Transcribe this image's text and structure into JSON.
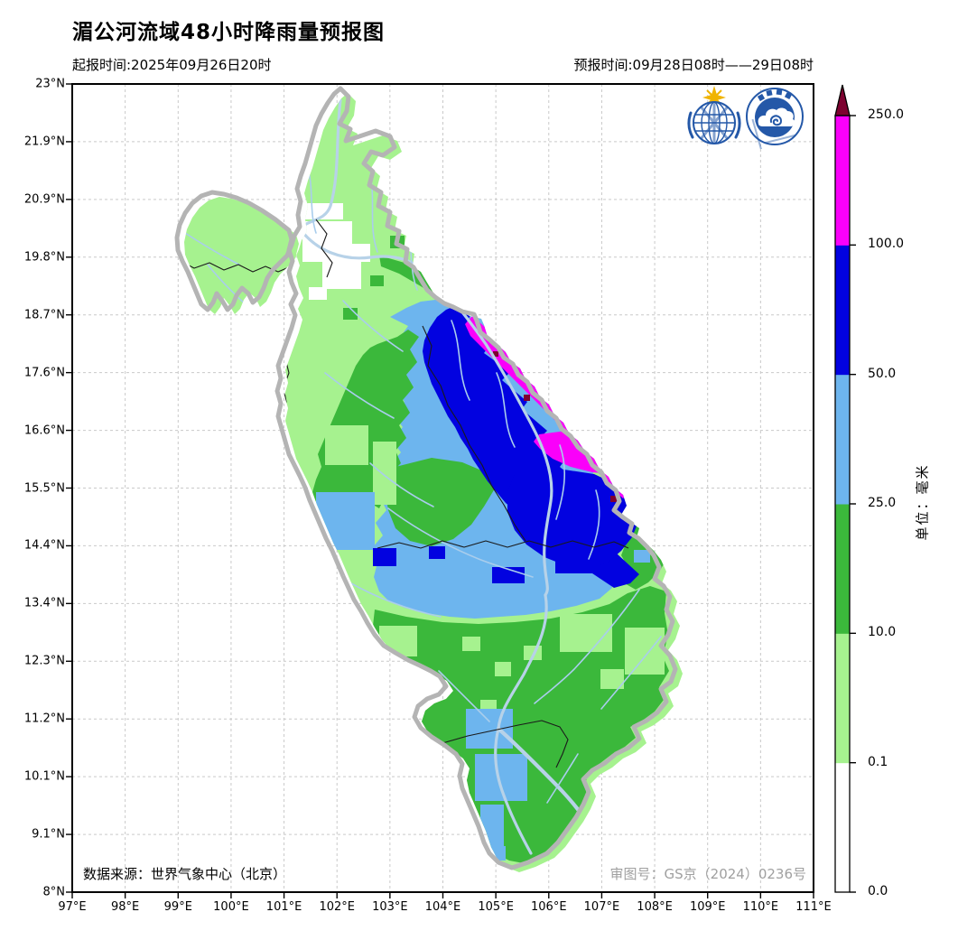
{
  "header": {
    "title": "湄公河流域48小时降雨量预报图",
    "init_time": "起报时间:2025年09月26日20时",
    "forecast_time": "预报时间:09月28日08时——29日08时"
  },
  "map": {
    "x_ticks": [
      "97°E",
      "98°E",
      "99°E",
      "100°E",
      "101°E",
      "102°E",
      "103°E",
      "104°E",
      "105°E",
      "106°E",
      "107°E",
      "108°E",
      "109°E",
      "110°E",
      "111°E"
    ],
    "y_ticks": [
      "23°N",
      "21.9°N",
      "20.9°N",
      "19.8°N",
      "18.7°N",
      "17.6°N",
      "16.6°N",
      "15.5°N",
      "14.4°N",
      "13.4°N",
      "12.3°N",
      "11.2°N",
      "10.1°N",
      "9.1°N",
      "8°N"
    ],
    "data_source": "数据来源：世界气象中心（北京）",
    "approval": "审图号：GS京（2024）0236号",
    "logos": {
      "left": "wmo-logo",
      "right": "cma-logo"
    }
  },
  "colorbar": {
    "unit": "单位：毫米",
    "ticks": [
      "250.0",
      "100.0",
      "50.0",
      "25.0",
      "10.0",
      "0.1",
      "0.0"
    ],
    "levels": [
      {
        "range": "0.0-0.1",
        "color": "#ffffff"
      },
      {
        "range": "0.1-10.0",
        "color": "#a6f28f"
      },
      {
        "range": "10.0-25.0",
        "color": "#3bb83b"
      },
      {
        "range": "25.0-50.0",
        "color": "#6db5ee"
      },
      {
        "range": "50.0-100.0",
        "color": "#0202e0"
      },
      {
        "range": "100.0-250.0",
        "color": "#fa00fa"
      },
      {
        "range": "> 250.0",
        "color": "#7d0230"
      }
    ]
  },
  "palette": {
    "white": "#ffffff",
    "lightgreen": "#a6f28f",
    "green": "#3bb83b",
    "lightblue": "#6db5ee",
    "blue": "#0202e0",
    "magenta": "#fa00fa",
    "maroon": "#7d0230",
    "river": "#a9cdec",
    "rivermain": "#b7d2e8",
    "grid": "#c9c9c9",
    "basinoutline": "#b4b4b4",
    "border": "#1a1a1a",
    "apprgray": "#a0a0a0",
    "logoblue": "#2458a8",
    "logogold": "#f0b400"
  }
}
